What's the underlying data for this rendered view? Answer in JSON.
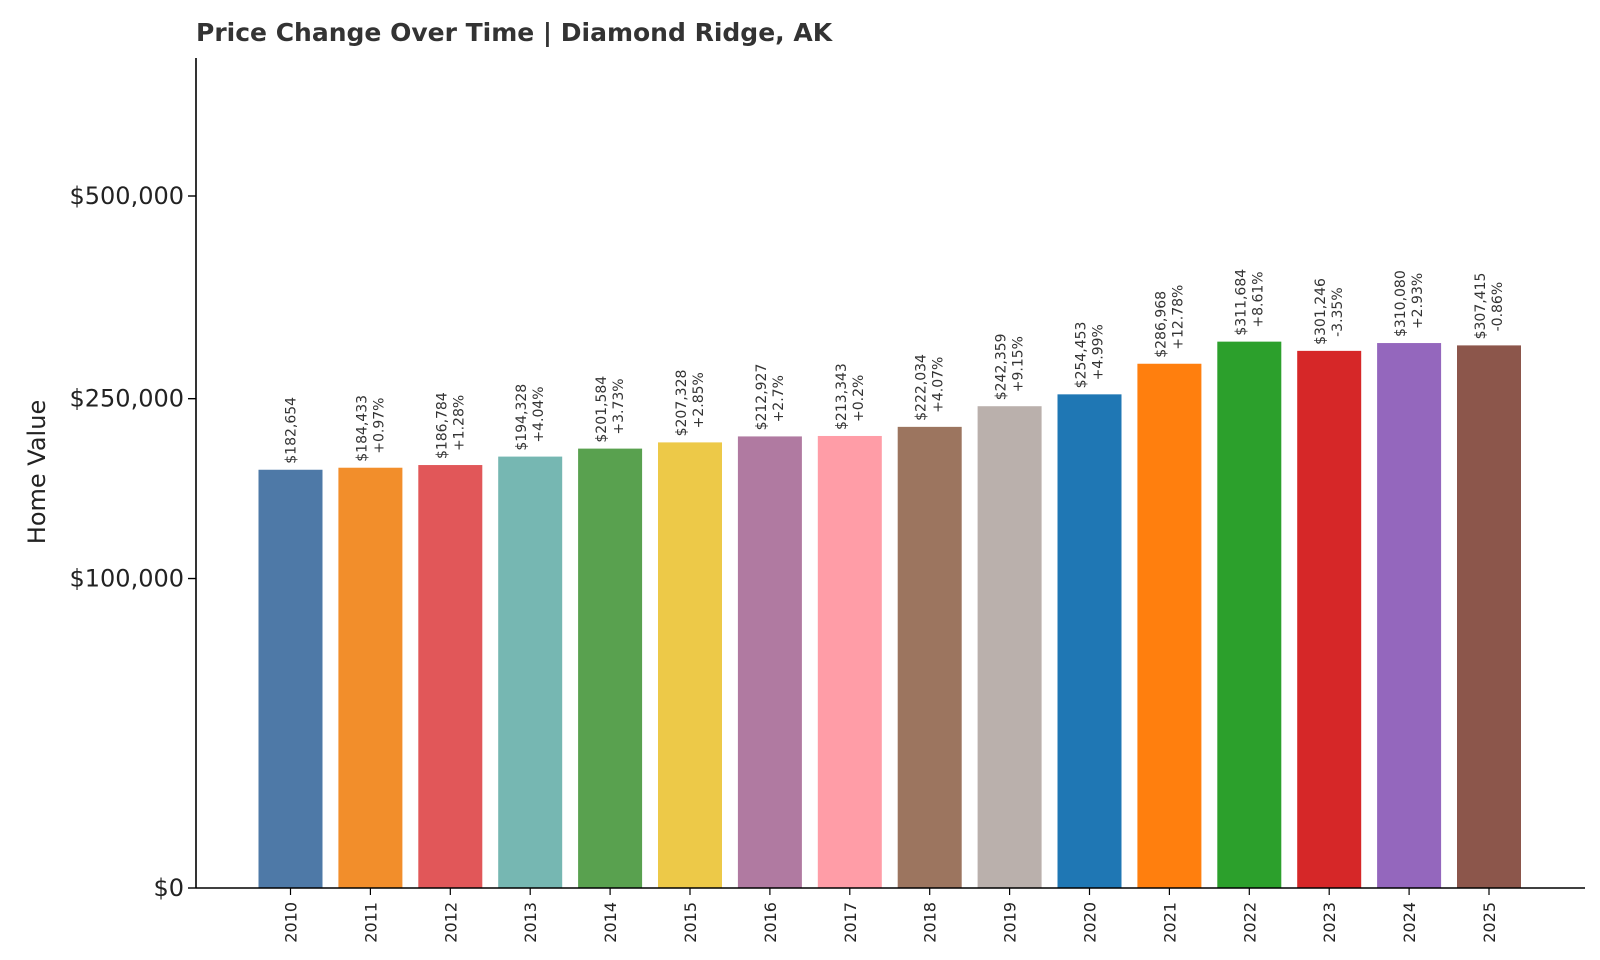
{
  "chart_data": {
    "type": "bar",
    "title": "Price Change Over Time | Diamond Ridge, AK",
    "xlabel": "",
    "ylabel": "Home Value",
    "y_scale": "sqrt",
    "ylim": [
      0,
      700000
    ],
    "yticks": [
      0,
      100000,
      250000,
      500000
    ],
    "ytick_labels": [
      "$0",
      "$100,000",
      "$250,000",
      "$500,000"
    ],
    "grid": false,
    "categories": [
      "2010",
      "2011",
      "2012",
      "2013",
      "2014",
      "2015",
      "2016",
      "2017",
      "2018",
      "2019",
      "2020",
      "2021",
      "2022",
      "2023",
      "2024",
      "2025"
    ],
    "values": [
      182654,
      184433,
      186784,
      194328,
      201584,
      207328,
      212927,
      213343,
      222034,
      242359,
      254453,
      286968,
      311684,
      301246,
      310080,
      307415
    ],
    "value_labels": [
      "$182,654",
      "$184,433",
      "$186,784",
      "$194,328",
      "$201,584",
      "$207,328",
      "$212,927",
      "$213,343",
      "$222,034",
      "$242,359",
      "$254,453",
      "$286,968",
      "$311,684",
      "$301,246",
      "$310,080",
      "$307,415"
    ],
    "change_labels": [
      "",
      "+0.97%",
      "+1.28%",
      "+4.04%",
      "+3.73%",
      "+2.85%",
      "+2.7%",
      "+0.2%",
      "+4.07%",
      "+9.15%",
      "+4.99%",
      "+12.78%",
      "+8.61%",
      "-3.35%",
      "+2.93%",
      "-0.86%"
    ],
    "colors": [
      "#4e79a7",
      "#f28e2b",
      "#e15759",
      "#76b7b2",
      "#59a14f",
      "#edc948",
      "#b07aa1",
      "#ff9da7",
      "#9c755f",
      "#bab0ac",
      "#1f77b4",
      "#ff7f0e",
      "#2ca02c",
      "#d62728",
      "#9467bd",
      "#8c564b"
    ]
  }
}
